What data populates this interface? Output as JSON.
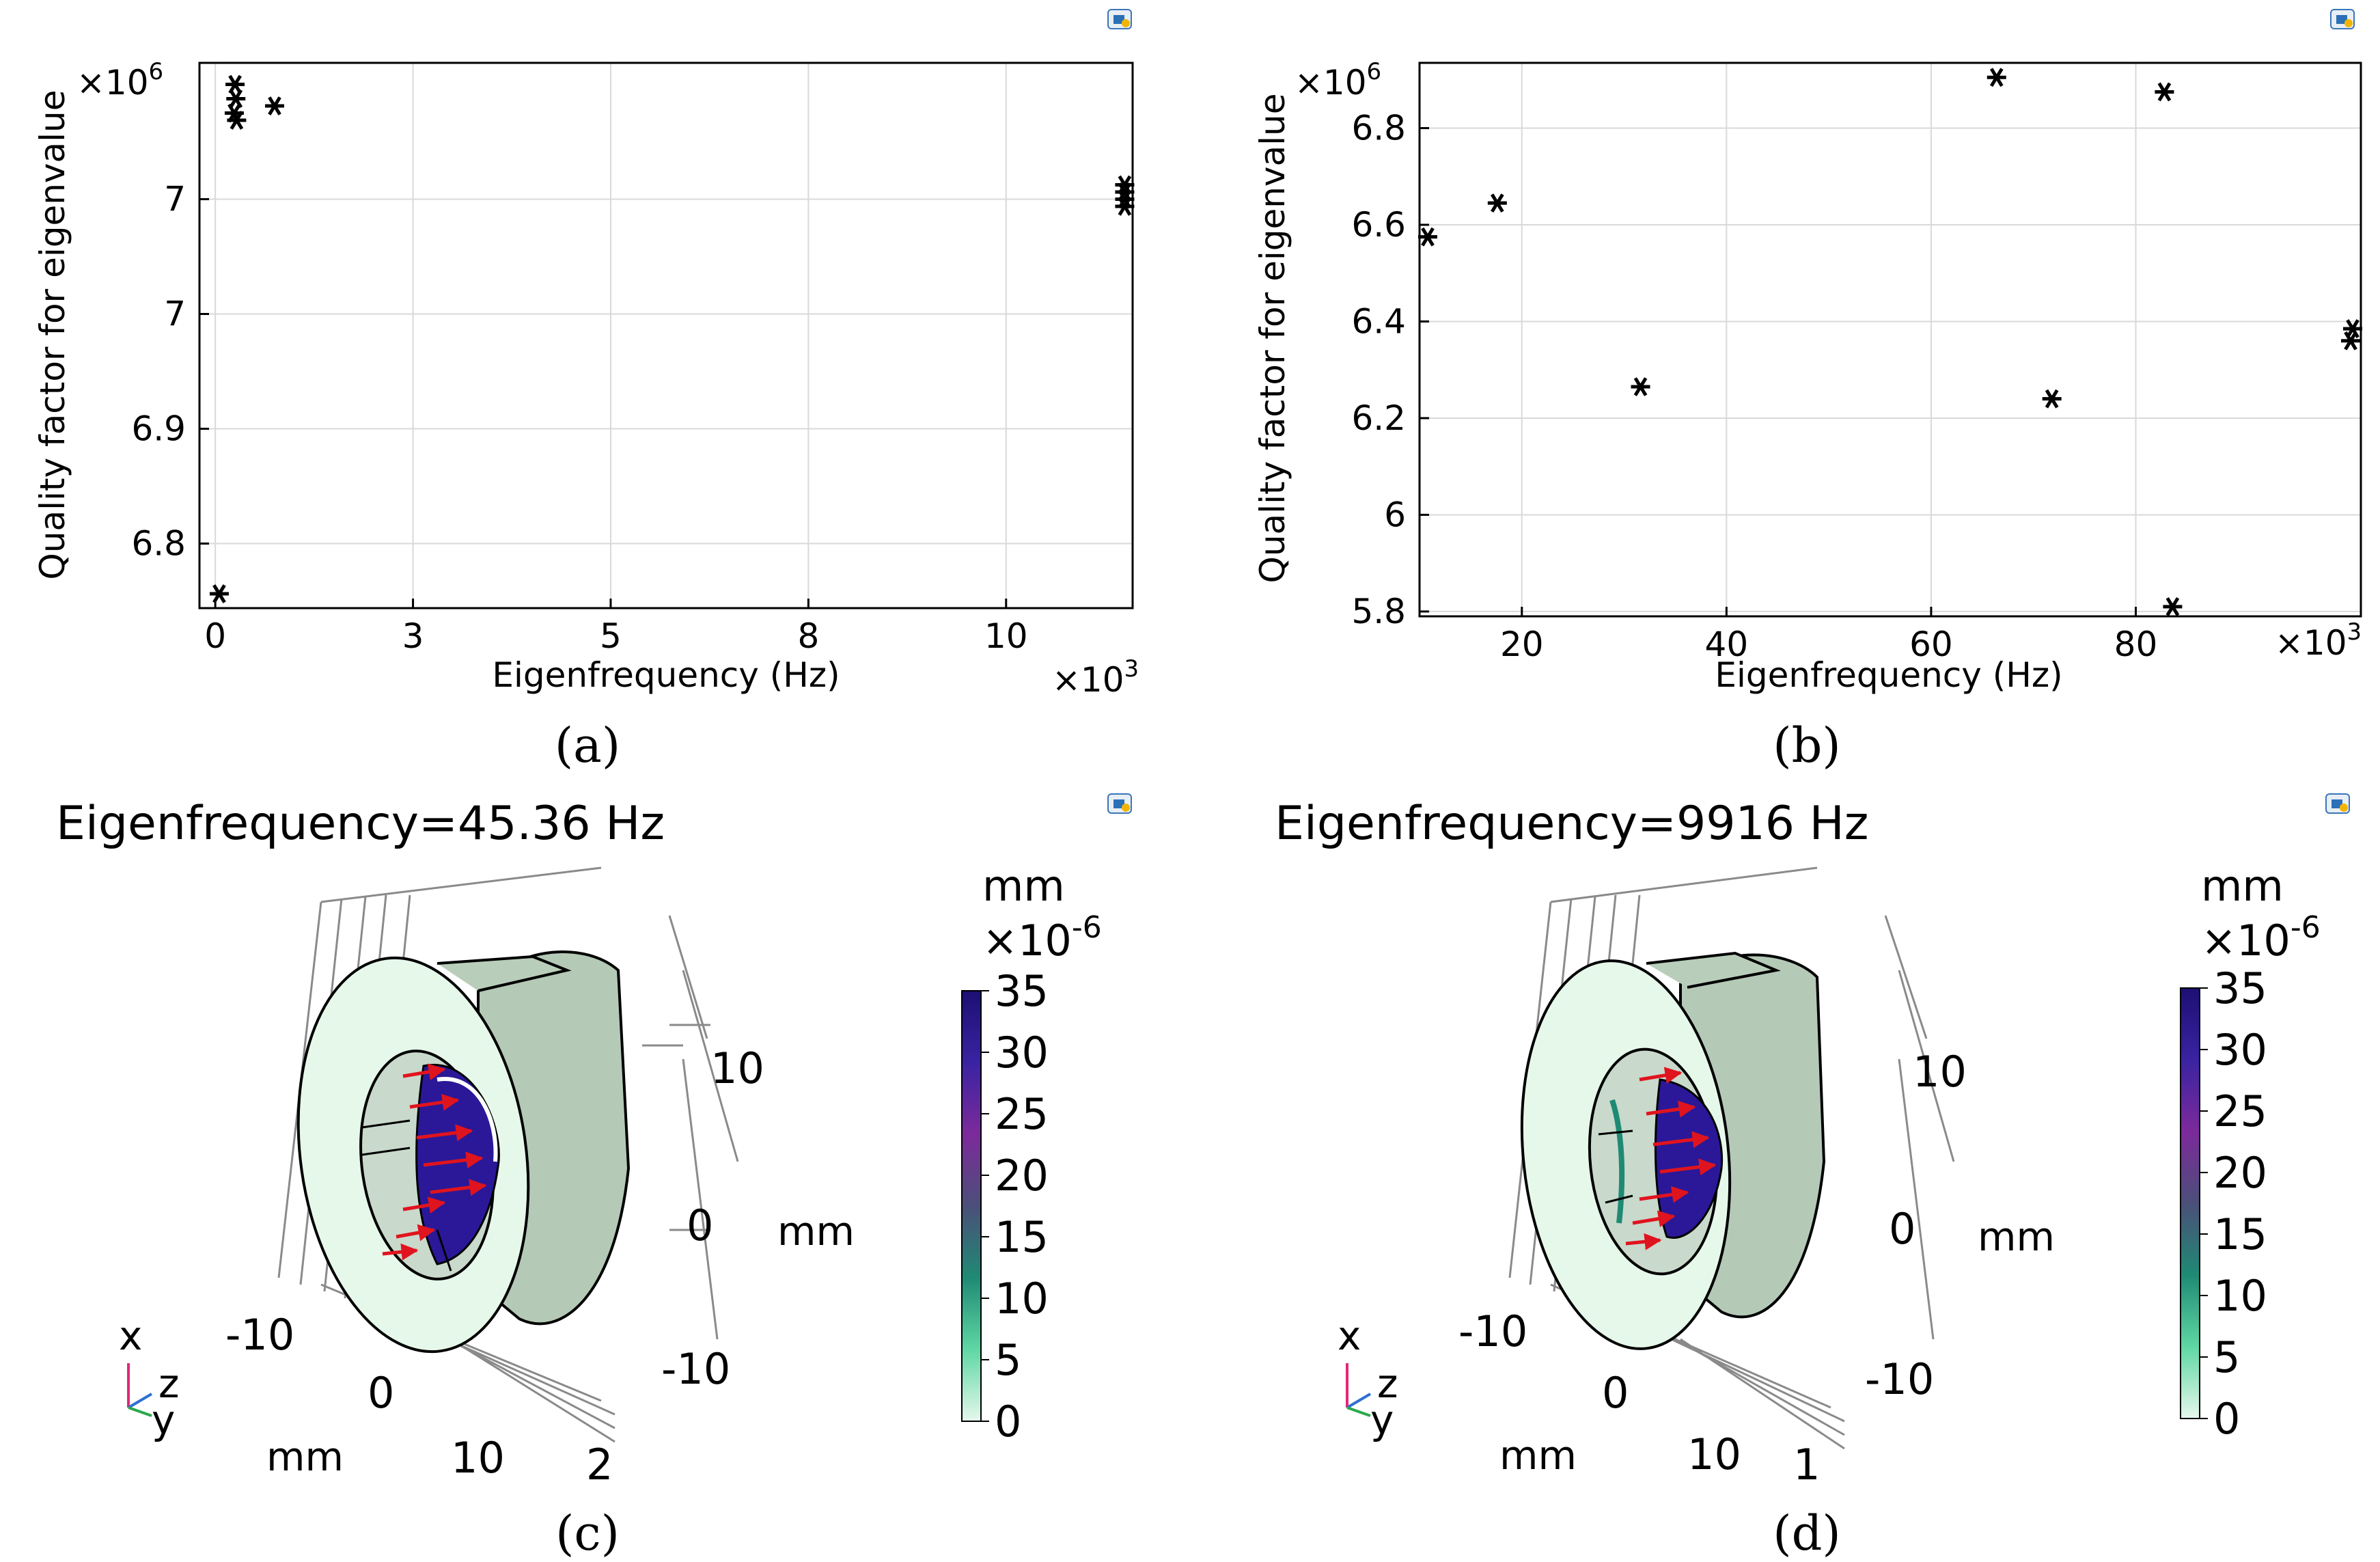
{
  "chart_data": [
    {
      "type": "scatter",
      "panel_label": "(a)",
      "xlabel": "Eigenfrequency (Hz)",
      "ylabel": "Quality factor for eigenvalue",
      "x_exponent": "×10",
      "x_exponent_power": "3",
      "y_exponent": "×10",
      "y_exponent_power": "6",
      "xlim": [
        -0.2,
        11.6
      ],
      "ylim": [
        6.735,
        7.115
      ],
      "x_ticks": [
        {
          "value": 0,
          "label": "0"
        },
        {
          "value": 2.5,
          "label": "3"
        },
        {
          "value": 5.0,
          "label": "5"
        },
        {
          "value": 7.5,
          "label": "8"
        },
        {
          "value": 10.0,
          "label": "10"
        }
      ],
      "y_ticks": [
        {
          "value": 6.78,
          "label": "6.8"
        },
        {
          "value": 6.86,
          "label": "6.9"
        },
        {
          "value": 6.94,
          "label": "7"
        },
        {
          "value": 7.02,
          "label": "7"
        }
      ],
      "grid": true,
      "marker": "asterisk",
      "points": [
        {
          "x": 0.05,
          "y": 6.745
        },
        {
          "x": 0.25,
          "y": 7.1
        },
        {
          "x": 0.26,
          "y": 7.09
        },
        {
          "x": 0.24,
          "y": 7.08
        },
        {
          "x": 0.27,
          "y": 7.075
        },
        {
          "x": 0.75,
          "y": 7.085
        },
        {
          "x": 11.5,
          "y": 7.03
        },
        {
          "x": 11.5,
          "y": 7.025
        },
        {
          "x": 11.5,
          "y": 7.02
        },
        {
          "x": 11.5,
          "y": 7.015
        }
      ]
    },
    {
      "type": "scatter",
      "panel_label": "(b)",
      "xlabel": "Eigenfrequency (Hz)",
      "ylabel": "Quality factor for eigenvalue",
      "x_exponent": "×10",
      "x_exponent_power": "3",
      "y_exponent": "×10",
      "y_exponent_power": "6",
      "xlim": [
        10,
        102
      ],
      "ylim": [
        5.79,
        6.935
      ],
      "x_ticks": [
        {
          "value": 20,
          "label": "20"
        },
        {
          "value": 40,
          "label": "40"
        },
        {
          "value": 60,
          "label": "60"
        },
        {
          "value": 80,
          "label": "80"
        }
      ],
      "y_ticks": [
        {
          "value": 5.8,
          "label": "5.8"
        },
        {
          "value": 6.0,
          "label": "6"
        },
        {
          "value": 6.2,
          "label": "6.2"
        },
        {
          "value": 6.4,
          "label": "6.4"
        },
        {
          "value": 6.6,
          "label": "6.6"
        },
        {
          "value": 6.8,
          "label": "6.8"
        }
      ],
      "grid": true,
      "marker": "asterisk",
      "points": [
        {
          "x": 10.8,
          "y": 6.575
        },
        {
          "x": 17.6,
          "y": 6.645
        },
        {
          "x": 31.6,
          "y": 6.265
        },
        {
          "x": 66.4,
          "y": 6.905
        },
        {
          "x": 71.8,
          "y": 6.24
        },
        {
          "x": 82.8,
          "y": 6.875
        },
        {
          "x": 83.6,
          "y": 5.81
        },
        {
          "x": 101.0,
          "y": 6.36
        },
        {
          "x": 101.2,
          "y": 6.385
        }
      ]
    }
  ],
  "panels": {
    "a": {
      "caption": "(a)"
    },
    "b": {
      "caption": "(b)"
    },
    "c": {
      "title": "Eigenfrequency=45.36 Hz",
      "caption": "(c)",
      "colorbar": {
        "unit": "mm",
        "exponent": "×10",
        "exponent_power": "-6",
        "ticks": [
          "35",
          "30",
          "25",
          "20",
          "15",
          "10",
          "5",
          "0"
        ],
        "colors": [
          "#e6f7ec",
          "#5fd7a4",
          "#1f8a74",
          "#4b4f79",
          "#7c2a9b",
          "#3a23a2",
          "#1c0f73"
        ]
      },
      "axis_labels": {
        "right_top": "10",
        "right_mid": "0",
        "right_bottom": "-10",
        "right_unit": "mm",
        "bottom_left": "-10",
        "bottom_zero": "0",
        "bottom_unit": "mm",
        "bottom_ten": "10",
        "depth": "2"
      },
      "triad": {
        "x": "x",
        "y": "y",
        "z": "z"
      }
    },
    "d": {
      "title": "Eigenfrequency=9916 Hz",
      "caption": "(d)",
      "colorbar": {
        "unit": "mm",
        "exponent": "×10",
        "exponent_power": "-6",
        "ticks": [
          "35",
          "30",
          "25",
          "20",
          "15",
          "10",
          "5",
          "0"
        ],
        "colors": [
          "#e6f7ec",
          "#5fd7a4",
          "#1f8a74",
          "#4b4f79",
          "#7c2a9b",
          "#3a23a2",
          "#1c0f73"
        ]
      },
      "axis_labels": {
        "right_top": "10",
        "right_mid": "0",
        "right_bottom": "-10",
        "right_unit": "mm",
        "bottom_left": "-10",
        "bottom_zero": "0",
        "bottom_unit": "mm",
        "bottom_ten": "10",
        "depth": "1"
      },
      "triad": {
        "x": "x",
        "y": "y",
        "z": "z"
      }
    }
  }
}
